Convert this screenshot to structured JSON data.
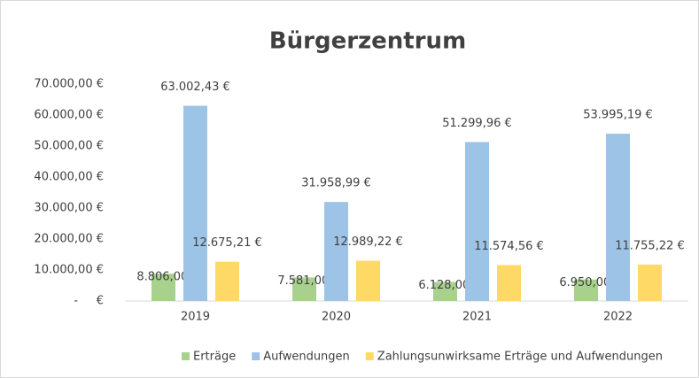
{
  "chart_data": {
    "type": "bar",
    "title": "Bürgerzentrum",
    "categories": [
      "2019",
      "2020",
      "2021",
      "2022"
    ],
    "series": [
      {
        "name": "Erträge",
        "color": "#a9d18e",
        "values": [
          8806.0,
          7581.0,
          6128.0,
          6950.0
        ],
        "value_labels": [
          "8.806,00 €",
          "7.581,00 €",
          "6.128,00 €",
          "6.950,00 €"
        ]
      },
      {
        "name": "Aufwendungen",
        "color": "#9dc3e6",
        "values": [
          63002.43,
          31958.99,
          51299.96,
          53995.19
        ],
        "value_labels": [
          "63.002,43 €",
          "31.958,99 €",
          "51.299,96 €",
          "53.995,19 €"
        ]
      },
      {
        "name": "Zahlungsunwirksame Erträge und Aufwendungen",
        "color": "#ffd966",
        "values": [
          12675.21,
          12989.22,
          11574.56,
          11755.22
        ],
        "value_labels": [
          "12.675,21 €",
          "12.989,22 €",
          "11.574,56 €",
          "11.755,22 €"
        ]
      }
    ],
    "ylim": [
      0,
      70000
    ],
    "yticks": [
      {
        "value": 0,
        "label": "-     €"
      },
      {
        "value": 10000,
        "label": "10.000,00 €"
      },
      {
        "value": 20000,
        "label": "20.000,00 €"
      },
      {
        "value": 30000,
        "label": "30.000,00 €"
      },
      {
        "value": 40000,
        "label": "40.000,00 €"
      },
      {
        "value": 50000,
        "label": "50.000,00 €"
      },
      {
        "value": 60000,
        "label": "60.000,00 €"
      },
      {
        "value": 70000,
        "label": "70.000,00 €"
      }
    ],
    "grid": false,
    "legend": "bottom"
  }
}
